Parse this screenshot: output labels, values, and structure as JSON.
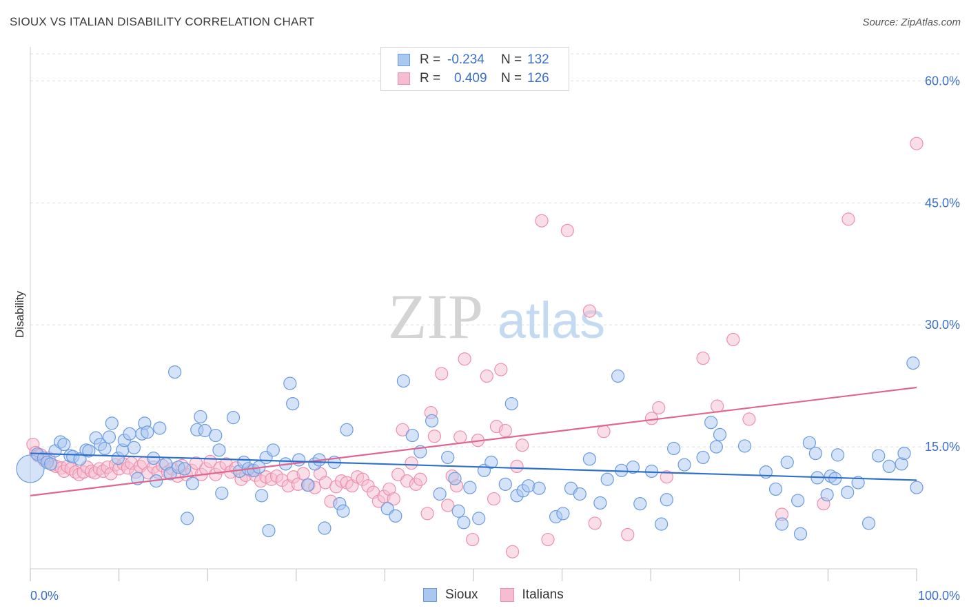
{
  "title": "SIOUX VS ITALIAN DISABILITY CORRELATION CHART",
  "source": "Source: ZipAtlas.com",
  "watermark": {
    "zip": "ZIP",
    "atlas": "atlas"
  },
  "legend": {
    "rows": [
      {
        "r_label": "R =",
        "r_value": "-0.234",
        "n_label": "N =",
        "n_value": "132"
      },
      {
        "r_label": "R =",
        "r_value": "0.409",
        "n_label": "N =",
        "n_value": "126"
      }
    ]
  },
  "bottom_legend": {
    "sioux": "Sioux",
    "italians": "Italians"
  },
  "colors": {
    "sioux_fill": "#a9c8f0",
    "sioux_stroke": "#6a9ae0",
    "sioux_line": "#2f6fcc",
    "italians_fill": "#f6bdd0",
    "italians_stroke": "#ec8fb0",
    "italians_line": "#e0668f",
    "tick_label": "#3b6fc9",
    "grid": "#dddddd"
  },
  "chart_data": {
    "type": "scatter",
    "xlabel": "",
    "ylabel": "Disability",
    "xlim": [
      0,
      100
    ],
    "ylim": [
      0,
      63
    ],
    "x_tick_labels": [
      "0.0%",
      "100.0%"
    ],
    "y_ticks": [
      15,
      30,
      45,
      60
    ],
    "y_tick_labels": [
      "15.0%",
      "30.0%",
      "45.0%",
      "60.0%"
    ],
    "grid": true,
    "legend_position": "top-center",
    "series": [
      {
        "name": "Sioux",
        "trend": [
          [
            0,
            14.2
          ],
          [
            100,
            10.9
          ]
        ],
        "points": [
          [
            0,
            12.3
          ],
          [
            0.8,
            14.1
          ],
          [
            1.5,
            13.6
          ],
          [
            1.9,
            13.1
          ],
          [
            2.3,
            12.9
          ],
          [
            2.8,
            14.5
          ],
          [
            3.4,
            15.6
          ],
          [
            3.8,
            15.3
          ],
          [
            4.5,
            13.9
          ],
          [
            4.8,
            13.8
          ],
          [
            5.6,
            13.5
          ],
          [
            6.3,
            14.6
          ],
          [
            6.6,
            14.5
          ],
          [
            7.4,
            16.1
          ],
          [
            7.9,
            15.3
          ],
          [
            8.4,
            14.8
          ],
          [
            8.9,
            16.2
          ],
          [
            9.2,
            17.9
          ],
          [
            9.9,
            13.6
          ],
          [
            10.4,
            14.6
          ],
          [
            10.6,
            15.8
          ],
          [
            11.2,
            16.6
          ],
          [
            11.7,
            14.9
          ],
          [
            12.1,
            11.1
          ],
          [
            12.6,
            16.6
          ],
          [
            12.9,
            17.9
          ],
          [
            13.2,
            16.8
          ],
          [
            13.9,
            13.6
          ],
          [
            14.2,
            10.8
          ],
          [
            14.6,
            17.3
          ],
          [
            15.3,
            12.9
          ],
          [
            15.8,
            11.7
          ],
          [
            16.3,
            24.2
          ],
          [
            16.7,
            12.5
          ],
          [
            17.4,
            12.3
          ],
          [
            17.7,
            6.2
          ],
          [
            18.3,
            10.5
          ],
          [
            18.8,
            17.1
          ],
          [
            19.2,
            18.7
          ],
          [
            19.7,
            17.0
          ],
          [
            20.9,
            16.4
          ],
          [
            21.3,
            14.6
          ],
          [
            21.6,
            9.3
          ],
          [
            22.9,
            18.6
          ],
          [
            23.6,
            12.0
          ],
          [
            24.1,
            13.1
          ],
          [
            24.6,
            12.3
          ],
          [
            25.2,
            12.1
          ],
          [
            25.8,
            12.5
          ],
          [
            26.1,
            9.0
          ],
          [
            26.6,
            13.7
          ],
          [
            26.9,
            4.7
          ],
          [
            27.4,
            14.6
          ],
          [
            28.8,
            12.9
          ],
          [
            29.3,
            22.8
          ],
          [
            29.6,
            20.3
          ],
          [
            30.3,
            13.4
          ],
          [
            31.3,
            10.3
          ],
          [
            32.1,
            12.9
          ],
          [
            32.6,
            13.4
          ],
          [
            33.2,
            5.0
          ],
          [
            34.3,
            13.1
          ],
          [
            34.9,
            8.0
          ],
          [
            35.3,
            7.1
          ],
          [
            35.7,
            17.1
          ],
          [
            40.3,
            7.4
          ],
          [
            41.2,
            6.5
          ],
          [
            42.1,
            23.1
          ],
          [
            43.1,
            16.4
          ],
          [
            44.0,
            14.4
          ],
          [
            45.3,
            18.2
          ],
          [
            46.2,
            9.2
          ],
          [
            47.1,
            13.7
          ],
          [
            47.9,
            11.1
          ],
          [
            48.3,
            7.1
          ],
          [
            48.9,
            5.7
          ],
          [
            49.6,
            10.0
          ],
          [
            50.6,
            6.2
          ],
          [
            51.2,
            12.1
          ],
          [
            52.0,
            13.1
          ],
          [
            53.6,
            10.4
          ],
          [
            54.3,
            20.3
          ],
          [
            54.9,
            9.0
          ],
          [
            55.6,
            9.6
          ],
          [
            56.2,
            10.2
          ],
          [
            57.4,
            9.9
          ],
          [
            59.3,
            6.4
          ],
          [
            60.1,
            6.8
          ],
          [
            61.0,
            9.9
          ],
          [
            62.0,
            9.2
          ],
          [
            63.1,
            13.5
          ],
          [
            64.3,
            8.1
          ],
          [
            65.1,
            11.0
          ],
          [
            66.3,
            23.7
          ],
          [
            66.7,
            12.1
          ],
          [
            68.0,
            12.5
          ],
          [
            68.8,
            8.0
          ],
          [
            70.1,
            12.0
          ],
          [
            71.2,
            5.5
          ],
          [
            71.8,
            8.5
          ],
          [
            72.6,
            14.8
          ],
          [
            73.8,
            12.8
          ],
          [
            75.9,
            13.7
          ],
          [
            76.8,
            18.0
          ],
          [
            77.4,
            15.0
          ],
          [
            77.8,
            16.5
          ],
          [
            80.6,
            15.1
          ],
          [
            83.0,
            11.9
          ],
          [
            84.1,
            9.8
          ],
          [
            84.8,
            5.5
          ],
          [
            85.4,
            13.1
          ],
          [
            86.6,
            8.4
          ],
          [
            86.9,
            4.3
          ],
          [
            87.9,
            15.5
          ],
          [
            88.6,
            14.2
          ],
          [
            88.8,
            11.2
          ],
          [
            89.9,
            9.1
          ],
          [
            90.3,
            11.4
          ],
          [
            90.8,
            11.1
          ],
          [
            91.1,
            14.0
          ],
          [
            92.2,
            9.4
          ],
          [
            93.4,
            10.6
          ],
          [
            94.6,
            5.6
          ],
          [
            95.7,
            13.9
          ],
          [
            96.9,
            12.6
          ],
          [
            98.3,
            12.9
          ],
          [
            98.6,
            14.2
          ],
          [
            99.6,
            25.3
          ],
          [
            100.0,
            10.0
          ]
        ]
      },
      {
        "name": "Italians",
        "trend": [
          [
            0,
            9.0
          ],
          [
            100,
            22.3
          ]
        ],
        "points": [
          [
            0.3,
            15.3
          ],
          [
            0.6,
            14.3
          ],
          [
            0.9,
            13.9
          ],
          [
            1.2,
            14.0
          ],
          [
            1.6,
            13.3
          ],
          [
            2.1,
            13.6
          ],
          [
            2.5,
            12.8
          ],
          [
            2.9,
            12.6
          ],
          [
            3.5,
            12.4
          ],
          [
            3.8,
            12.0
          ],
          [
            4.2,
            12.6
          ],
          [
            4.6,
            12.3
          ],
          [
            5.1,
            11.9
          ],
          [
            5.5,
            11.6
          ],
          [
            6.0,
            11.9
          ],
          [
            6.4,
            12.5
          ],
          [
            6.9,
            12.0
          ],
          [
            7.3,
            11.8
          ],
          [
            7.8,
            12.3
          ],
          [
            8.2,
            12.0
          ],
          [
            8.7,
            12.5
          ],
          [
            9.1,
            11.7
          ],
          [
            9.6,
            12.8
          ],
          [
            10.0,
            12.3
          ],
          [
            10.5,
            12.9
          ],
          [
            11.0,
            12.4
          ],
          [
            11.4,
            13.0
          ],
          [
            11.9,
            11.9
          ],
          [
            12.4,
            12.6
          ],
          [
            12.8,
            13.0
          ],
          [
            13.3,
            11.8
          ],
          [
            13.9,
            12.5
          ],
          [
            14.4,
            11.9
          ],
          [
            14.9,
            12.7
          ],
          [
            15.5,
            11.9
          ],
          [
            16.0,
            12.3
          ],
          [
            16.6,
            11.4
          ],
          [
            17.1,
            12.7
          ],
          [
            17.6,
            11.6
          ],
          [
            18.2,
            12.1
          ],
          [
            18.7,
            13.0
          ],
          [
            19.3,
            11.6
          ],
          [
            19.8,
            12.3
          ],
          [
            20.3,
            13.2
          ],
          [
            20.9,
            11.6
          ],
          [
            21.4,
            12.4
          ],
          [
            22.1,
            12.9
          ],
          [
            22.6,
            11.9
          ],
          [
            23.2,
            12.4
          ],
          [
            23.8,
            11.0
          ],
          [
            24.3,
            11.5
          ],
          [
            24.9,
            12.1
          ],
          [
            25.4,
            11.5
          ],
          [
            26.0,
            10.8
          ],
          [
            26.6,
            11.3
          ],
          [
            27.2,
            11.0
          ],
          [
            27.8,
            11.4
          ],
          [
            28.4,
            10.9
          ],
          [
            29.1,
            10.2
          ],
          [
            29.7,
            11.3
          ],
          [
            30.2,
            10.4
          ],
          [
            30.8,
            11.7
          ],
          [
            31.4,
            10.3
          ],
          [
            32.1,
            10.0
          ],
          [
            32.7,
            11.7
          ],
          [
            33.3,
            10.6
          ],
          [
            33.9,
            8.3
          ],
          [
            34.5,
            10.1
          ],
          [
            35.1,
            10.8
          ],
          [
            35.7,
            10.6
          ],
          [
            36.3,
            10.2
          ],
          [
            36.9,
            11.3
          ],
          [
            37.5,
            11.0
          ],
          [
            38.1,
            10.2
          ],
          [
            38.7,
            9.4
          ],
          [
            39.3,
            8.3
          ],
          [
            39.9,
            8.9
          ],
          [
            40.5,
            9.8
          ],
          [
            41.0,
            8.6
          ],
          [
            41.5,
            11.6
          ],
          [
            42.0,
            17.1
          ],
          [
            42.5,
            10.8
          ],
          [
            43.0,
            13.0
          ],
          [
            43.5,
            10.4
          ],
          [
            44.0,
            11.0
          ],
          [
            44.8,
            6.8
          ],
          [
            45.2,
            19.2
          ],
          [
            45.6,
            16.3
          ],
          [
            46.4,
            24.0
          ],
          [
            47.1,
            7.8
          ],
          [
            47.6,
            11.4
          ],
          [
            48.1,
            10.2
          ],
          [
            48.5,
            16.2
          ],
          [
            49.0,
            25.8
          ],
          [
            49.9,
            3.6
          ],
          [
            50.5,
            15.8
          ],
          [
            51.5,
            23.7
          ],
          [
            52.3,
            8.6
          ],
          [
            52.6,
            17.5
          ],
          [
            53.1,
            24.5
          ],
          [
            53.6,
            17.0
          ],
          [
            54.4,
            2.1
          ],
          [
            54.9,
            12.6
          ],
          [
            55.5,
            15.2
          ],
          [
            57.7,
            42.8
          ],
          [
            58.4,
            3.6
          ],
          [
            60.6,
            41.6
          ],
          [
            63.1,
            31.7
          ],
          [
            63.7,
            5.6
          ],
          [
            64.7,
            16.9
          ],
          [
            67.4,
            4.2
          ],
          [
            70.1,
            18.5
          ],
          [
            70.9,
            19.8
          ],
          [
            71.8,
            11.3
          ],
          [
            75.9,
            25.9
          ],
          [
            77.5,
            20.0
          ],
          [
            79.3,
            28.2
          ],
          [
            81.1,
            18.4
          ],
          [
            84.8,
            6.7
          ],
          [
            89.5,
            8.0
          ],
          [
            92.3,
            43.0
          ],
          [
            100.0,
            52.3
          ]
        ]
      }
    ]
  }
}
